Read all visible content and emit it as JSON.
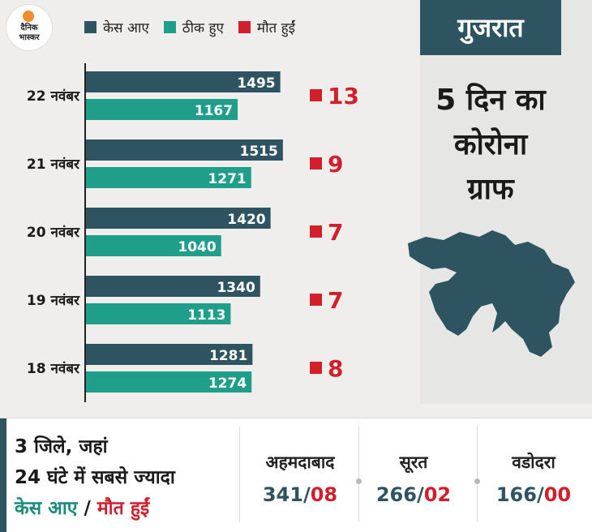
{
  "logo": {
    "line1": "दैनिक",
    "line2": "भास्कर"
  },
  "legend": [
    {
      "label": "केस आए",
      "color": "#2e5361"
    },
    {
      "label": "ठीक हुए",
      "color": "#1f9e8a"
    },
    {
      "label": "मौत हुईं",
      "color": "#d11f2c"
    }
  ],
  "state": "गुजरात",
  "headline": [
    "5 दिन का",
    "कोरोना",
    "ग्राफ"
  ],
  "chart_data": {
    "type": "bar",
    "orientation": "horizontal",
    "categories": [
      "22 नवंबर",
      "21 नवंबर",
      "20 नवंबर",
      "19 नवंबर",
      "18 नवंबर"
    ],
    "series": [
      {
        "name": "केस आए",
        "color": "#2e5361",
        "values": [
          1495,
          1515,
          1420,
          1340,
          1281
        ]
      },
      {
        "name": "ठीक हुए",
        "color": "#1f9e8a",
        "values": [
          1167,
          1271,
          1040,
          1113,
          1274
        ]
      },
      {
        "name": "मौत हुईं",
        "color": "#d11f2c",
        "values": [
          13,
          9,
          7,
          7,
          8
        ]
      }
    ]
  },
  "summary": {
    "line1": "3 जिले, जहां",
    "line2": "24 घंटे में सबसे ज्यादा",
    "cases_label": "केस आए",
    "separator": "/",
    "deaths_label": "मौत हुईं"
  },
  "cities": [
    {
      "name": "अहमदाबाद",
      "cases": "341",
      "deaths": "08"
    },
    {
      "name": "सूरत",
      "cases": "266",
      "deaths": "02"
    },
    {
      "name": "वडोदरा",
      "cases": "166",
      "deaths": "00"
    }
  ]
}
